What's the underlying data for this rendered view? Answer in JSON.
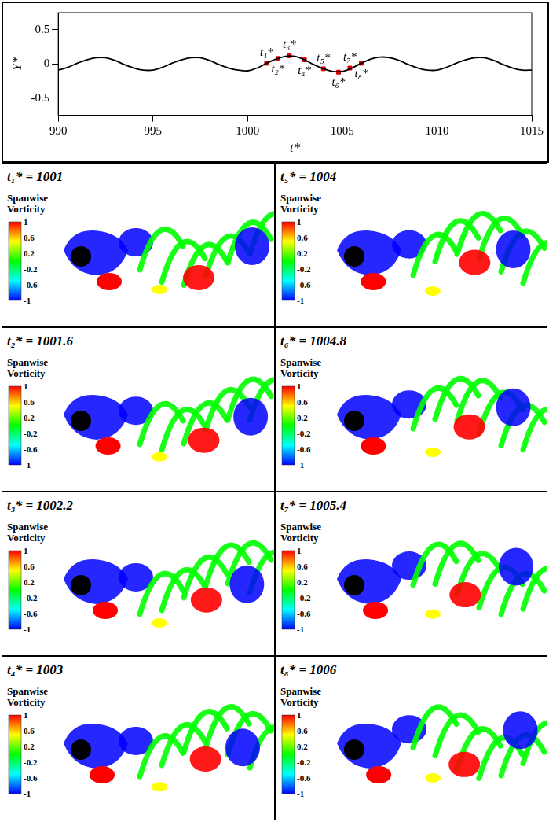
{
  "chart_data": {
    "type": "line",
    "x_label": "t*",
    "y_label": "Y*",
    "color": "#000000",
    "x": [
      990,
      990.5,
      991,
      991.5,
      992,
      992.5,
      993,
      993.5,
      994,
      994.5,
      995,
      995.5,
      996,
      996.5,
      997,
      997.5,
      998,
      998.5,
      999,
      999.5,
      1000,
      1000.5,
      1001,
      1001.5,
      1002,
      1002.5,
      1003,
      1003.5,
      1004,
      1004.5,
      1005,
      1005.5,
      1006,
      1006.5,
      1007,
      1007.5,
      1008,
      1008.5,
      1009,
      1009.5,
      1010,
      1010.5,
      1011,
      1011.5,
      1012,
      1012.5,
      1013,
      1013.5,
      1014,
      1014.5,
      1015
    ],
    "values": [
      -0.09,
      -0.05,
      0.01,
      0.06,
      0.09,
      0.09,
      0.05,
      -0.01,
      -0.06,
      -0.09,
      -0.09,
      -0.05,
      0.01,
      0.06,
      0.09,
      0.09,
      0.05,
      -0.01,
      -0.06,
      -0.09,
      -0.1,
      -0.06,
      0.01,
      0.07,
      0.11,
      0.11,
      0.06,
      -0.01,
      -0.07,
      -0.11,
      -0.11,
      -0.06,
      0.01,
      0.07,
      0.1,
      0.09,
      0.05,
      -0.01,
      -0.06,
      -0.09,
      -0.09,
      -0.05,
      0.01,
      0.06,
      0.09,
      0.09,
      0.05,
      -0.01,
      -0.06,
      -0.09,
      -0.09
    ],
    "xlim": [
      990,
      1015
    ],
    "xticks": [
      990,
      995,
      1000,
      1005,
      1010,
      1015
    ],
    "ylim": [
      -0.75,
      0.75
    ],
    "yticks": [
      -0.5,
      0,
      0.5
    ],
    "grid": false,
    "markers": {
      "labels": [
        "t₁*",
        "t₂*",
        "t₃*",
        "t₄*",
        "t₅*",
        "t₆*",
        "t₇*",
        "t₈*"
      ],
      "x": [
        1001,
        1001.6,
        1002.2,
        1003,
        1004,
        1004.8,
        1005.4,
        1006
      ],
      "values": [
        0.01,
        0.08,
        0.12,
        0.06,
        -0.07,
        -0.12,
        -0.06,
        0.01
      ],
      "color": "#e00000",
      "marker": "square"
    }
  },
  "panels": [
    {
      "title": "t₁* = 1001"
    },
    {
      "title": "t₂* = 1001.6"
    },
    {
      "title": "t₃* = 1002.2"
    },
    {
      "title": "t₄* = 1003"
    },
    {
      "title": "t₅* = 1004"
    },
    {
      "title": "t₆* = 1004.8"
    },
    {
      "title": "t₇* = 1005.4"
    },
    {
      "title": "t₈* = 1006"
    }
  ],
  "colorbar": {
    "title": "Spanwise Vorticity",
    "range": [
      -1,
      1
    ],
    "ticks": [
      1,
      0.6,
      0.2,
      -0.2,
      -0.6,
      -1
    ],
    "colors": [
      "#0000ff",
      "#00ffff",
      "#00ff00",
      "#ffff00",
      "#ff0000"
    ]
  }
}
